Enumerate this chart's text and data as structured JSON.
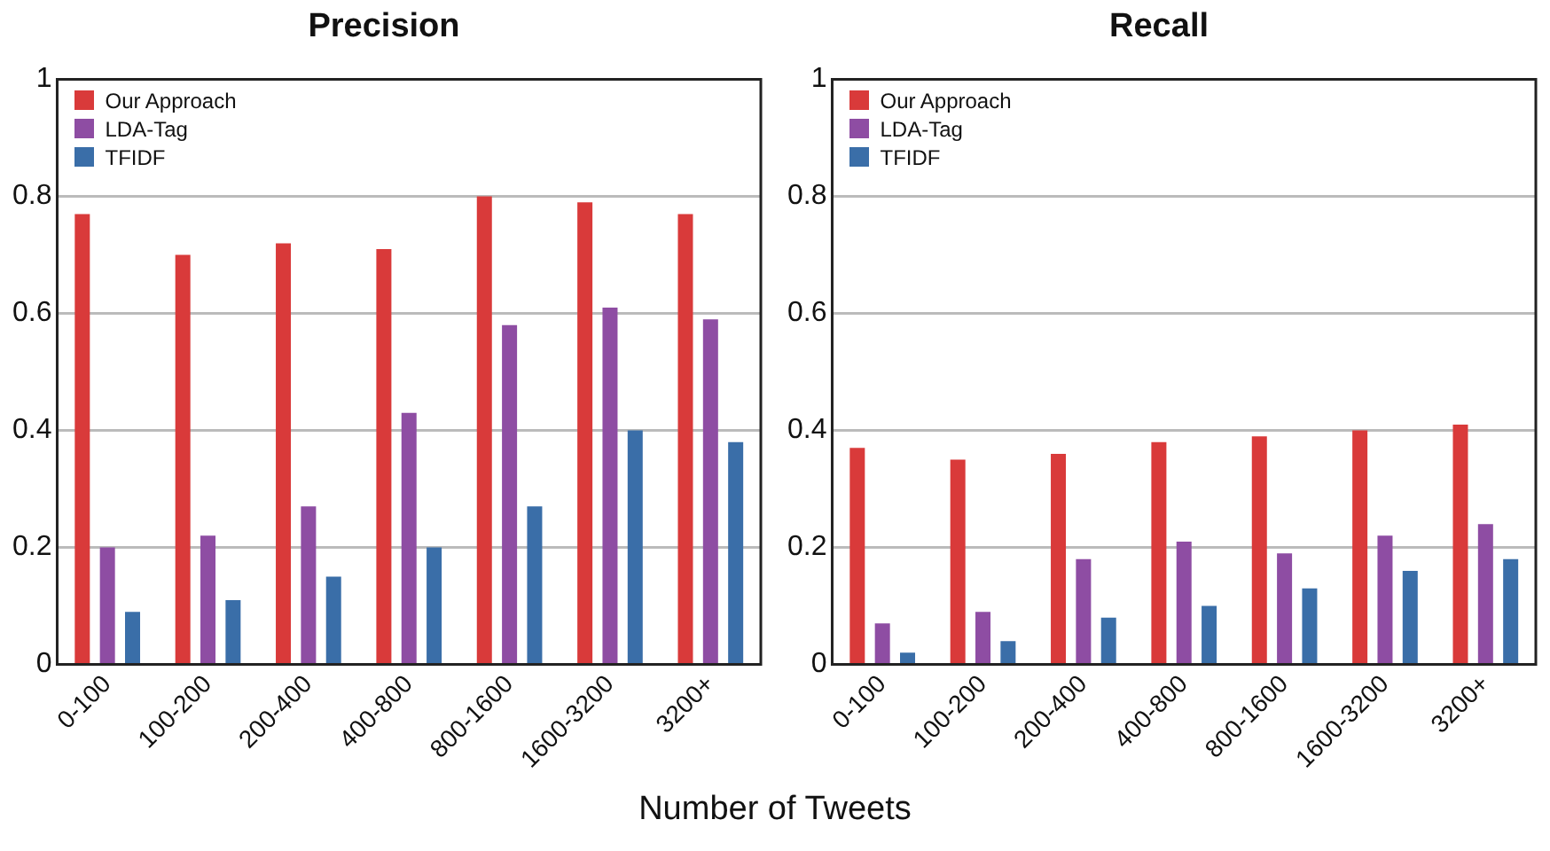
{
  "chart_data": [
    {
      "type": "bar",
      "title": "Precision",
      "xlabel": "Number of Tweets",
      "categories": [
        "0-100",
        "100-200",
        "200-400",
        "400-800",
        "800-1600",
        "1600-3200",
        "3200+"
      ],
      "series": [
        {
          "name": "Our Approach",
          "color": "#d93a3a",
          "values": [
            0.77,
            0.7,
            0.72,
            0.71,
            0.8,
            0.79,
            0.77
          ]
        },
        {
          "name": "LDA-Tag",
          "color": "#8e4da3",
          "values": [
            0.2,
            0.22,
            0.27,
            0.43,
            0.58,
            0.61,
            0.59
          ]
        },
        {
          "name": "TFIDF",
          "color": "#3a6ea8",
          "values": [
            0.09,
            0.11,
            0.15,
            0.2,
            0.27,
            0.4,
            0.38
          ]
        }
      ],
      "ylim": [
        0,
        1
      ],
      "yticks": [
        0,
        0.2,
        0.4,
        0.6,
        0.8,
        1
      ],
      "grid": "y",
      "legend": "top left"
    },
    {
      "type": "bar",
      "title": "Recall",
      "categories": [
        "0-100",
        "100-200",
        "200-400",
        "400-800",
        "800-1600",
        "1600-3200",
        "3200+"
      ],
      "series": [
        {
          "name": "Our Approach",
          "color": "#d93a3a",
          "values": [
            0.37,
            0.35,
            0.36,
            0.38,
            0.39,
            0.4,
            0.41
          ]
        },
        {
          "name": "LDA-Tag",
          "color": "#8e4da3",
          "values": [
            0.07,
            0.09,
            0.18,
            0.21,
            0.19,
            0.22,
            0.24
          ]
        },
        {
          "name": "TFIDF",
          "color": "#3a6ea8",
          "values": [
            0.02,
            0.04,
            0.08,
            0.1,
            0.13,
            0.16,
            0.18
          ]
        }
      ],
      "ylim": [
        0,
        1
      ],
      "yticks": [
        0,
        0.2,
        0.4,
        0.6,
        0.8,
        1
      ],
      "grid": "y",
      "legend": "top left"
    }
  ]
}
